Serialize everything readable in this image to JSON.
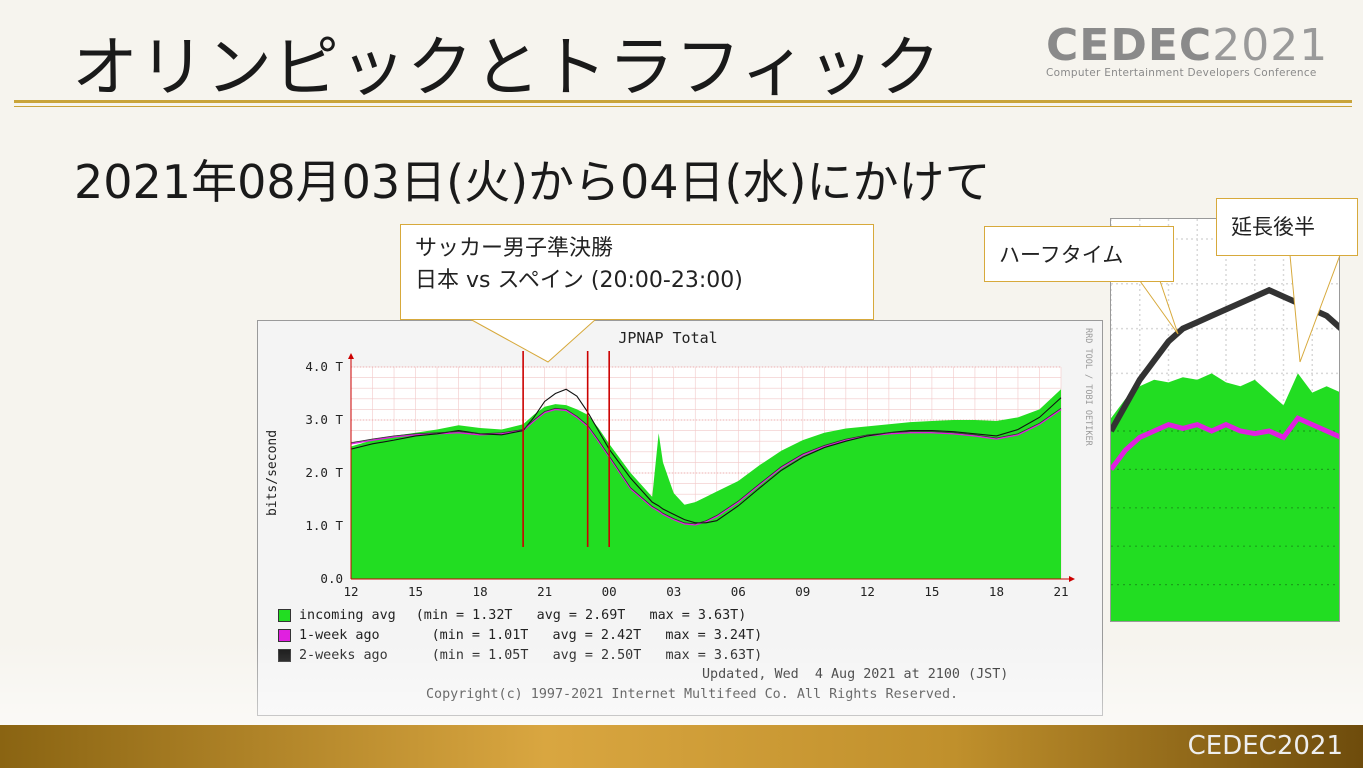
{
  "slide": {
    "title": "オリンピックとトラフィック",
    "subtitle": "2021年08月03日(火)から04日(水)にかけて",
    "logo_main": "CEDEC",
    "logo_year": "2021",
    "logo_sub": "Computer Entertainment Developers Conference",
    "bottom_logo_main": "CEDEC",
    "bottom_logo_year": "2021"
  },
  "callouts": {
    "main_line1": "サッカー男子準決勝",
    "main_line2": "日本 vs スペイン (20:00-23:00)",
    "halftime": "ハーフタイム",
    "extension": "延長後半"
  },
  "colors": {
    "incoming": "#22dd22",
    "week": "#e020e0",
    "twoweek": "#111111",
    "marker": "#cc0000",
    "accent": "#c9a43a"
  },
  "chart_data": {
    "type": "area",
    "title": "JPNAP Total",
    "ylabel": "bits/second",
    "side_note": "RRD TOOL / TOBI OETIKER",
    "y_ticks": [
      "0.0",
      "1.0 T",
      "2.0 T",
      "3.0 T",
      "4.0 T"
    ],
    "ylim": [
      0,
      4.0
    ],
    "x_ticks": [
      "12",
      "15",
      "18",
      "21",
      "00",
      "03",
      "06",
      "09",
      "12",
      "15",
      "18",
      "21"
    ],
    "x": [
      12,
      13,
      14,
      15,
      16,
      17,
      18,
      19,
      20,
      20.5,
      21,
      21.5,
      22,
      22.5,
      23,
      23.5,
      24,
      25,
      26,
      26.3,
      26.5,
      26.8,
      27,
      27.5,
      28,
      28.5,
      29,
      30,
      31,
      32,
      33,
      34,
      35,
      36,
      37,
      38,
      39,
      40,
      41,
      42,
      43,
      44,
      45
    ],
    "series": [
      {
        "name": "incoming avg",
        "stats": "(min = 1.32T   avg = 2.69T   max = 3.63T)",
        "values": [
          2.5,
          2.62,
          2.7,
          2.76,
          2.82,
          2.9,
          2.85,
          2.82,
          2.92,
          3.1,
          3.25,
          3.3,
          3.28,
          3.2,
          3.1,
          2.85,
          2.55,
          2.0,
          1.55,
          2.75,
          2.2,
          1.85,
          1.62,
          1.4,
          1.45,
          1.55,
          1.65,
          1.85,
          2.15,
          2.42,
          2.62,
          2.76,
          2.84,
          2.88,
          2.92,
          2.96,
          2.98,
          3.0,
          3.0,
          2.98,
          3.05,
          3.2,
          3.58
        ]
      },
      {
        "name": "1-week ago",
        "stats": "(min = 1.01T   avg = 2.42T   max = 3.24T)",
        "values": [
          2.55,
          2.62,
          2.68,
          2.72,
          2.74,
          2.76,
          2.72,
          2.74,
          2.8,
          2.98,
          3.14,
          3.2,
          3.18,
          3.05,
          2.88,
          2.6,
          2.3,
          1.7,
          1.35,
          1.28,
          1.22,
          1.16,
          1.12,
          1.04,
          1.02,
          1.08,
          1.18,
          1.45,
          1.78,
          2.1,
          2.34,
          2.5,
          2.62,
          2.7,
          2.74,
          2.76,
          2.76,
          2.74,
          2.7,
          2.64,
          2.72,
          2.92,
          3.2
        ]
      },
      {
        "name": "2-weeks ago",
        "stats": "(min = 1.05T   avg = 2.50T   max = 3.63T)",
        "values": [
          2.45,
          2.55,
          2.62,
          2.7,
          2.74,
          2.8,
          2.74,
          2.72,
          2.8,
          3.05,
          3.35,
          3.5,
          3.58,
          3.45,
          3.15,
          2.8,
          2.45,
          1.9,
          1.45,
          1.38,
          1.32,
          1.26,
          1.22,
          1.12,
          1.06,
          1.06,
          1.1,
          1.38,
          1.72,
          2.05,
          2.3,
          2.48,
          2.6,
          2.7,
          2.76,
          2.8,
          2.8,
          2.78,
          2.74,
          2.7,
          2.82,
          3.05,
          3.42
        ]
      }
    ],
    "markers": [
      20,
      23,
      24
    ],
    "updated": "Updated, Wed  4 Aug 2021 at 2100 (JST)",
    "copyright": "Copyright(c) 1997-2021 Internet Multifeed Co. All Rights Reserved.",
    "grid": true,
    "legend": "bottom"
  },
  "zoom_chart_data": {
    "type": "area",
    "x": [
      0,
      1,
      2,
      3,
      4,
      5,
      6,
      7,
      8,
      9,
      10,
      11,
      12,
      13,
      14,
      15,
      16
    ],
    "series": [
      {
        "name": "incoming avg",
        "values": [
          3.6,
          3.75,
          3.85,
          3.9,
          3.88,
          3.92,
          3.9,
          3.95,
          3.88,
          3.85,
          3.9,
          3.8,
          3.7,
          3.95,
          3.8,
          3.85,
          3.8
        ]
      },
      {
        "name": "1-week ago",
        "values": [
          3.2,
          3.35,
          3.45,
          3.5,
          3.55,
          3.52,
          3.55,
          3.5,
          3.55,
          3.5,
          3.48,
          3.5,
          3.45,
          3.6,
          3.55,
          3.5,
          3.45
        ]
      },
      {
        "name": "2-weeks ago",
        "values": [
          3.5,
          3.7,
          3.9,
          4.05,
          4.2,
          4.3,
          4.35,
          4.4,
          4.45,
          4.5,
          4.55,
          4.6,
          4.55,
          4.5,
          4.45,
          4.4,
          4.3
        ]
      }
    ]
  }
}
